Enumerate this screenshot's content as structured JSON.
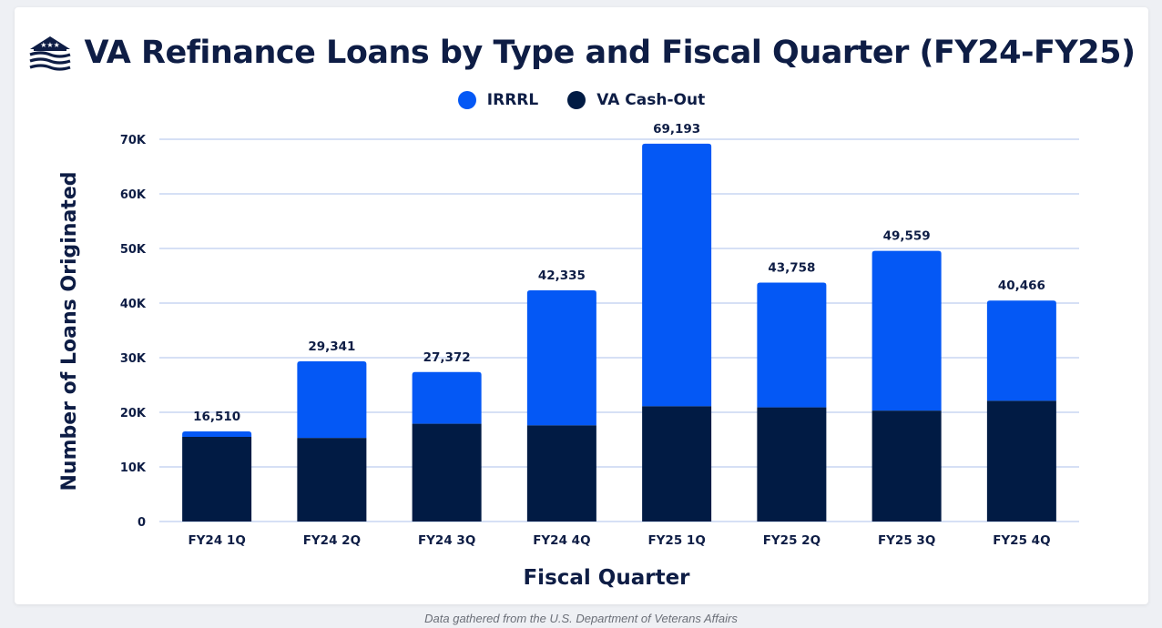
{
  "title": "VA Refinance Loans by Type and Fiscal Quarter (FY24-FY25)",
  "footer": "Data gathered from the U.S. Department of Veterans Affairs",
  "colors": {
    "irrrl": "#0458f5",
    "cashout": "#011b44",
    "grid": "#c9d6f2",
    "text": "#0e1d45"
  },
  "icons": {
    "logo": "house-with-stars-icon"
  },
  "chart_data": {
    "type": "bar",
    "stacked": true,
    "xlabel": "Fiscal Quarter",
    "ylabel": "Number of Loans Originated",
    "ylim": [
      0,
      70000
    ],
    "yticks": [
      0,
      10000,
      20000,
      30000,
      40000,
      50000,
      60000,
      70000
    ],
    "ytick_labels": [
      "0",
      "10K",
      "20K",
      "30K",
      "40K",
      "50K",
      "60K",
      "70K"
    ],
    "grid": true,
    "legend_placement": "top-center",
    "categories": [
      "FY24 1Q",
      "FY24 2Q",
      "FY24 3Q",
      "FY24 4Q",
      "FY25 1Q",
      "FY25 2Q",
      "FY25 3Q",
      "FY25 4Q"
    ],
    "series": [
      {
        "name": "VA Cash-Out",
        "values": [
          15500,
          15300,
          17900,
          17600,
          21100,
          20900,
          20300,
          22100
        ]
      },
      {
        "name": "IRRRL",
        "values": [
          1010,
          14041,
          9472,
          24735,
          48093,
          22858,
          29259,
          18366
        ]
      }
    ],
    "totals": [
      16510,
      29341,
      27372,
      42335,
      69193,
      43758,
      49559,
      40466
    ],
    "total_labels": [
      "16,510",
      "29,341",
      "27,372",
      "42,335",
      "69,193",
      "43,758",
      "49,559",
      "40,466"
    ]
  }
}
